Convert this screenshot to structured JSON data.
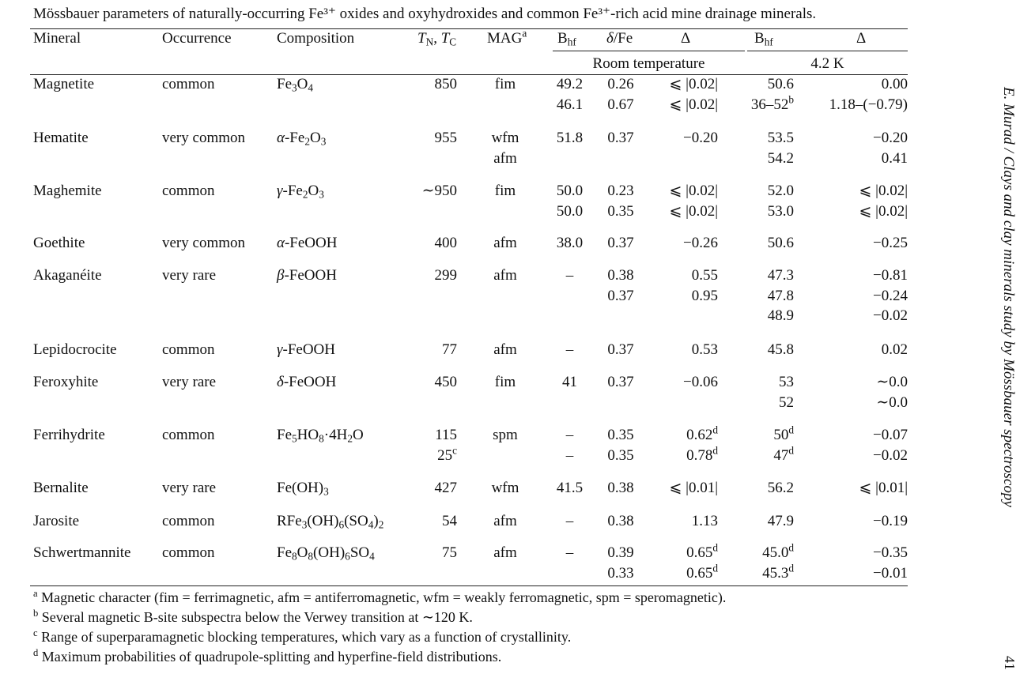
{
  "caption": "Mössbauer parameters of naturally-occurring Fe³⁺ oxides and oxyhydroxides and common Fe³⁺-rich acid mine drainage minerals.",
  "headers": {
    "mineral": "Mineral",
    "occurrence": "Occurrence",
    "composition": "Composition",
    "tn_tc": "TN, TC",
    "mag": "MAGa",
    "bhf": "Bhf",
    "delta_fe": "δ/Fe",
    "Delta": "Δ",
    "bhf42": "Bhf",
    "Delta42": "Δ",
    "room_temp": "Room temperature",
    "low_temp": "4.2 K"
  },
  "rows": [
    {
      "mineral": "Magnetite",
      "occ": "common",
      "comp": "Fe3O4",
      "tn": [
        "850",
        ""
      ],
      "mag": [
        "fim",
        ""
      ],
      "bhf": [
        "49.2",
        "46.1"
      ],
      "dfe": [
        "0.26",
        "0.67"
      ],
      "D": [
        "⩽ |0.02|",
        "⩽ |0.02|"
      ],
      "b4": [
        "50.6",
        "36–52b"
      ],
      "D4": [
        "0.00",
        "1.18–(−0.79)"
      ]
    },
    {
      "mineral": "Hematite",
      "occ": "very common",
      "comp": "α-Fe2O3",
      "tn": [
        "955",
        ""
      ],
      "mag": [
        "wfm",
        "afm"
      ],
      "bhf": [
        "51.8",
        ""
      ],
      "dfe": [
        "0.37",
        ""
      ],
      "D": [
        "−0.20",
        ""
      ],
      "b4": [
        "53.5",
        "54.2"
      ],
      "D4": [
        "−0.20",
        "0.41"
      ]
    },
    {
      "mineral": "Maghemite",
      "occ": "common",
      "comp": "γ-Fe2O3",
      "tn": [
        "∼950",
        ""
      ],
      "mag": [
        "fim",
        ""
      ],
      "bhf": [
        "50.0",
        "50.0"
      ],
      "dfe": [
        "0.23",
        "0.35"
      ],
      "D": [
        "⩽ |0.02|",
        "⩽ |0.02|"
      ],
      "b4": [
        "52.0",
        "53.0"
      ],
      "D4": [
        "⩽ |0.02|",
        "⩽ |0.02|"
      ]
    },
    {
      "mineral": "Goethite",
      "occ": "very common",
      "comp": "α-FeOOH",
      "tn": [
        "400"
      ],
      "mag": [
        "afm"
      ],
      "bhf": [
        "38.0"
      ],
      "dfe": [
        "0.37"
      ],
      "D": [
        "−0.26"
      ],
      "b4": [
        "50.6"
      ],
      "D4": [
        "−0.25"
      ]
    },
    {
      "mineral": "Akaganéite",
      "occ": "very rare",
      "comp": "β-FeOOH",
      "tn": [
        "299",
        "",
        ""
      ],
      "mag": [
        "afm",
        "",
        ""
      ],
      "bhf": [
        "–",
        "",
        ""
      ],
      "dfe": [
        "0.38",
        "0.37",
        ""
      ],
      "D": [
        "0.55",
        "0.95",
        ""
      ],
      "b4": [
        "47.3",
        "47.8",
        "48.9"
      ],
      "D4": [
        "−0.81",
        "−0.24",
        "−0.02"
      ]
    },
    {
      "mineral": "Lepidocrocite",
      "occ": "common",
      "comp": "γ-FeOOH",
      "tn": [
        "77"
      ],
      "mag": [
        "afm"
      ],
      "bhf": [
        "–"
      ],
      "dfe": [
        "0.37"
      ],
      "D": [
        "0.53"
      ],
      "b4": [
        "45.8"
      ],
      "D4": [
        "0.02"
      ]
    },
    {
      "mineral": "Feroxyhite",
      "occ": "very rare",
      "comp": "δ-FeOOH",
      "tn": [
        "450",
        ""
      ],
      "mag": [
        "fim",
        ""
      ],
      "bhf": [
        "41",
        ""
      ],
      "dfe": [
        "0.37",
        ""
      ],
      "D": [
        "−0.06",
        ""
      ],
      "b4": [
        "53",
        "52"
      ],
      "D4": [
        "∼0.0",
        "∼0.0"
      ]
    },
    {
      "mineral": "Ferrihydrite",
      "occ": "common",
      "comp": "Fe5HO8·4H2O",
      "tn": [
        "115",
        "25c"
      ],
      "mag": [
        "spm",
        ""
      ],
      "bhf": [
        "–",
        "–"
      ],
      "dfe": [
        "0.35",
        "0.35"
      ],
      "D": [
        "0.62d",
        "0.78d"
      ],
      "b4": [
        "50d",
        "47d"
      ],
      "D4": [
        "−0.07",
        "−0.02"
      ]
    },
    {
      "mineral": "Bernalite",
      "occ": "very rare",
      "comp": "Fe(OH)3",
      "tn": [
        "427"
      ],
      "mag": [
        "wfm"
      ],
      "bhf": [
        "41.5"
      ],
      "dfe": [
        "0.38"
      ],
      "D": [
        "⩽ |0.01|"
      ],
      "b4": [
        "56.2"
      ],
      "D4": [
        "⩽ |0.01|"
      ]
    },
    {
      "mineral": "Jarosite",
      "occ": "common",
      "comp": "RFe3(OH)6(SO4)2",
      "tn": [
        "54"
      ],
      "mag": [
        "afm"
      ],
      "bhf": [
        "–"
      ],
      "dfe": [
        "0.38"
      ],
      "D": [
        "1.13"
      ],
      "b4": [
        "47.9"
      ],
      "D4": [
        "−0.19"
      ]
    },
    {
      "mineral": "Schwertmannite",
      "occ": "common",
      "comp": "Fe8O8(OH)6SO4",
      "tn": [
        "75",
        ""
      ],
      "mag": [
        "afm",
        ""
      ],
      "bhf": [
        "–",
        ""
      ],
      "dfe": [
        "0.39",
        "0.33"
      ],
      "D": [
        "0.65d",
        "0.65d"
      ],
      "b4": [
        "45.0d",
        "45.3d"
      ],
      "D4": [
        "−0.35",
        "−0.01"
      ]
    }
  ],
  "footnotes": [
    {
      "mark": "a",
      "text": "Magnetic character (fim = ferrimagnetic, afm = antiferromagnetic, wfm = weakly ferromagnetic, spm = speromagnetic)."
    },
    {
      "mark": "b",
      "text": "Several magnetic B-site subspectra below the Verwey transition at ∼120 K."
    },
    {
      "mark": "c",
      "text": "Range of superparamagnetic blocking temperatures, which vary as a function of crystallinity."
    },
    {
      "mark": "d",
      "text": "Maximum probabilities of quadrupole-splitting and hyperfine-field distributions."
    }
  ],
  "side_text": "E. Murad / Clays and clay minerals study by Mössbauer spectroscopy",
  "page_number": "41"
}
